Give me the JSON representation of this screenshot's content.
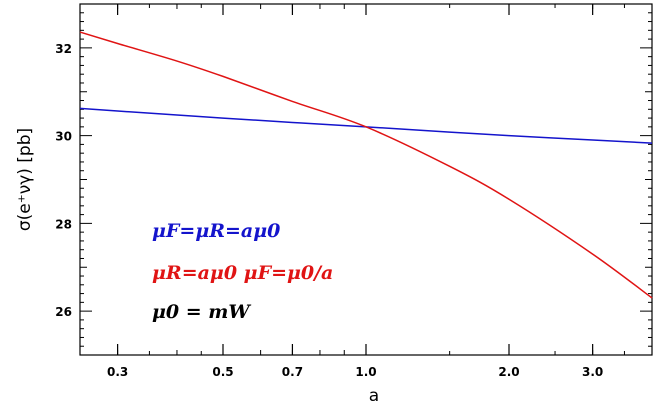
{
  "chart_data": {
    "type": "line",
    "xlabel": "a",
    "ylabel": "σ(e⁺νγ) [pb]",
    "xscale": "log",
    "xlim": [
      0.25,
      4.0
    ],
    "ylim": [
      25.0,
      33.0
    ],
    "xticks": [
      0.3,
      0.5,
      0.7,
      1.0,
      2.0,
      3.0
    ],
    "xtick_labels": [
      "0.3",
      "0.5",
      "0.7",
      "1.0",
      "2.0",
      "3.0"
    ],
    "yticks": [
      26,
      28,
      30,
      32
    ],
    "ytick_labels": [
      "26",
      "28",
      "30",
      "32"
    ],
    "grid": false,
    "legend_position": "lower-left",
    "series": [
      {
        "name": "μF=μR=aμ0",
        "color": "#1414cc",
        "x": [
          0.25,
          0.3,
          0.4,
          0.5,
          0.7,
          1.0,
          1.5,
          2.0,
          3.0,
          4.0
        ],
        "y": [
          30.62,
          30.56,
          30.47,
          30.4,
          30.3,
          30.2,
          30.08,
          30.0,
          29.9,
          29.83
        ]
      },
      {
        "name": "μR=aμ0 μF=μ0/a",
        "color": "#e01414",
        "x": [
          0.25,
          0.3,
          0.4,
          0.5,
          0.7,
          1.0,
          1.5,
          2.0,
          3.0,
          4.0
        ],
        "y": [
          32.36,
          32.1,
          31.7,
          31.35,
          30.78,
          30.2,
          29.3,
          28.55,
          27.3,
          26.3
        ]
      }
    ],
    "annotations": [
      {
        "text": "μF=μR=aμ0",
        "color": "#1414cc"
      },
      {
        "text": "μR=aμ0  μF=μ0/a",
        "color": "#e01414"
      },
      {
        "text": "μ0 = mW",
        "color": "#000000"
      }
    ]
  }
}
